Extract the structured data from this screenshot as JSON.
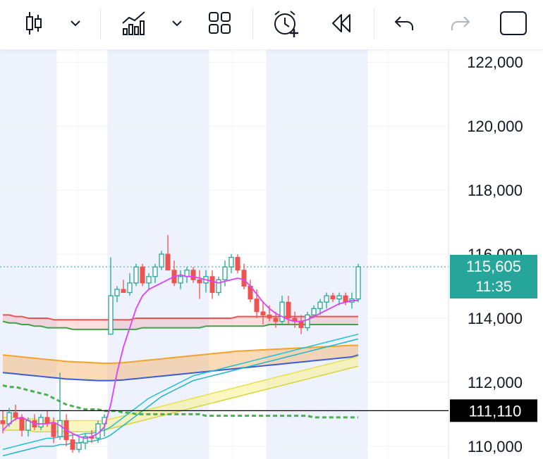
{
  "toolbar": {
    "buttons": [
      {
        "name": "candlestick-type-icon"
      },
      {
        "name": "chart-type-dropdown-icon"
      },
      {
        "name": "indicators-icon"
      },
      {
        "name": "indicators-dropdown-icon"
      },
      {
        "name": "layout-grid-icon"
      },
      {
        "name": "add-alert-icon"
      },
      {
        "name": "replay-icon"
      },
      {
        "name": "undo-icon"
      },
      {
        "name": "redo-icon"
      },
      {
        "name": "fullscreen-icon"
      }
    ],
    "icon_color": "#131722",
    "disabled_color": "#b2b5be"
  },
  "chart_data": {
    "type": "candlestick",
    "title": "",
    "xlabel": "",
    "ylabel": "",
    "ylim": [
      109600,
      122400
    ],
    "y_ticks": [
      "122,000",
      "120,000",
      "118,000",
      "116,000",
      "114,000",
      "112,000",
      "110,000"
    ],
    "y_tick_values": [
      122000,
      120000,
      118000,
      116000,
      114000,
      112000,
      110000
    ],
    "grid": true,
    "colors": {
      "up": "#26a69a",
      "down": "#ef5350",
      "session_band": "#edf2fd"
    },
    "last_price": {
      "value": 115605,
      "label": "115,605",
      "countdown": "11:35",
      "color": "#26a69a"
    },
    "horizontal_line": {
      "value": 111110,
      "label": "111,110",
      "color": "#000000"
    },
    "candles": [
      [
        110800,
        111100,
        110400,
        110700
      ],
      [
        110700,
        111200,
        110600,
        111050
      ],
      [
        111050,
        111300,
        110800,
        110900
      ],
      [
        110900,
        111000,
        110300,
        110500
      ],
      [
        110500,
        110900,
        110300,
        110800
      ],
      [
        110800,
        111000,
        110500,
        110600
      ],
      [
        110600,
        111000,
        110500,
        110900
      ],
      [
        110900,
        111100,
        110600,
        110700
      ],
      [
        110700,
        110900,
        110100,
        110300
      ],
      [
        110300,
        112300,
        110200,
        110800
      ],
      [
        110800,
        111000,
        110000,
        110200
      ],
      [
        110200,
        110400,
        109800,
        109900
      ],
      [
        109900,
        110300,
        109800,
        110100
      ],
      [
        110100,
        110400,
        109900,
        110300
      ],
      [
        110300,
        110500,
        110100,
        110250
      ],
      [
        110250,
        110800,
        110100,
        110700
      ],
      [
        110700,
        111000,
        110300,
        110900
      ],
      [
        113500,
        115900,
        113500,
        114700
      ],
      [
        114700,
        115000,
        114500,
        114900
      ],
      [
        114900,
        115200,
        114800,
        114800
      ],
      [
        114800,
        115400,
        114700,
        115100
      ],
      [
        115100,
        115700,
        115000,
        115600
      ],
      [
        115600,
        115700,
        115000,
        115100
      ],
      [
        115100,
        115400,
        114900,
        115300
      ],
      [
        115300,
        115700,
        115100,
        115600
      ],
      [
        115600,
        116100,
        115500,
        116000
      ],
      [
        116000,
        116600,
        115500,
        115500
      ],
      [
        115500,
        115800,
        115000,
        115100
      ],
      [
        115100,
        115500,
        114900,
        115300
      ],
      [
        115300,
        115600,
        115100,
        115500
      ],
      [
        115500,
        115600,
        115100,
        115200
      ],
      [
        115200,
        115500,
        114600,
        115100
      ],
      [
        115100,
        115500,
        114800,
        115300
      ],
      [
        115300,
        115500,
        114600,
        114800
      ],
      [
        114800,
        115300,
        114700,
        115200
      ],
      [
        115200,
        115800,
        115000,
        115600
      ],
      [
        115600,
        116000,
        115400,
        115900
      ],
      [
        115900,
        116000,
        115400,
        115500
      ],
      [
        115500,
        115700,
        114900,
        115000
      ],
      [
        115000,
        115200,
        114500,
        114600
      ],
      [
        114600,
        114900,
        114000,
        114200
      ],
      [
        114200,
        114500,
        113800,
        114100
      ],
      [
        114100,
        114400,
        113900,
        114000
      ],
      [
        114000,
        114200,
        113700,
        113900
      ],
      [
        113900,
        114700,
        113800,
        114500
      ],
      [
        114500,
        114700,
        113800,
        114000
      ],
      [
        114000,
        114200,
        113700,
        113900
      ],
      [
        113900,
        114100,
        113500,
        113700
      ],
      [
        113700,
        114200,
        113600,
        114100
      ],
      [
        114100,
        114400,
        114000,
        114300
      ],
      [
        114300,
        114600,
        114100,
        114500
      ],
      [
        114500,
        114800,
        114300,
        114700
      ],
      [
        114700,
        114800,
        114500,
        114600
      ],
      [
        114600,
        114800,
        114400,
        114700
      ],
      [
        114700,
        114800,
        114400,
        114500
      ],
      [
        114500,
        114800,
        114300,
        114600
      ],
      [
        114600,
        115700,
        114500,
        115605
      ]
    ],
    "ma_fast": [
      110500,
      110700,
      110850,
      110900,
      110800,
      110700,
      110700,
      110700,
      110750,
      110650,
      110500,
      110400,
      110300,
      110250,
      110300,
      110400,
      110600,
      111300,
      112300,
      113100,
      113700,
      114300,
      114700,
      114900,
      115000,
      115100,
      115200,
      115300,
      115350,
      115300,
      115300,
      115250,
      115200,
      115150,
      115100,
      115150,
      115200,
      115250,
      115200,
      115000,
      114750,
      114500,
      114300,
      114150,
      114050,
      113950,
      113900,
      113900,
      113950,
      114050,
      114150,
      114250,
      114350,
      114450,
      114500,
      114550,
      114550
    ],
    "ema_green": [
      111900,
      111850,
      111850,
      111800,
      111750,
      111700,
      111650,
      111600,
      111500,
      111400,
      111300,
      111250,
      111200,
      111150,
      111150,
      111150,
      111100,
      111100,
      111100,
      111050,
      111050,
      111000,
      111000,
      111000,
      111000,
      111000,
      111000,
      111000,
      111000,
      111000,
      111000,
      111000,
      110950,
      110950,
      110950,
      110950,
      110950,
      110950,
      110950,
      110950,
      110950,
      110950,
      110950,
      110950,
      110950,
      110950,
      110950,
      110950,
      110950,
      110900,
      110900,
      110900,
      110900,
      110900,
      110900,
      110900,
      110900
    ],
    "ribbon_red": [
      114100,
      114100,
      114050,
      114050,
      114000,
      114000,
      114000,
      114000,
      113950,
      113950,
      113950,
      113950,
      113950,
      113950,
      113950,
      113950,
      113950,
      113950,
      113950,
      113950,
      113950,
      114000,
      114000,
      114000,
      114000,
      114000,
      114000,
      114000,
      114000,
      114000,
      114000,
      114000,
      114000,
      114000,
      114000,
      114000,
      114000,
      114050,
      114050,
      114050,
      114050,
      114050,
      114050,
      114050,
      114050,
      114050,
      114050,
      114050,
      114050,
      114050,
      114050,
      114050,
      114050,
      114050,
      114050,
      114050,
      114050
    ],
    "ribbon_green": [
      113900,
      113850,
      113850,
      113800,
      113800,
      113750,
      113750,
      113700,
      113700,
      113700,
      113700,
      113650,
      113650,
      113650,
      113650,
      113650,
      113650,
      113650,
      113650,
      113650,
      113650,
      113650,
      113700,
      113700,
      113700,
      113700,
      113700,
      113700,
      113700,
      113700,
      113700,
      113700,
      113750,
      113750,
      113750,
      113750,
      113750,
      113750,
      113750,
      113750,
      113750,
      113750,
      113800,
      113800,
      113800,
      113800,
      113800,
      113800,
      113800,
      113800,
      113800,
      113800,
      113800,
      113800,
      113800,
      113800,
      113800
    ],
    "ribbon_orange": [
      112850,
      112830,
      112810,
      112790,
      112770,
      112750,
      112730,
      112710,
      112690,
      112670,
      112650,
      112640,
      112630,
      112620,
      112610,
      112600,
      112590,
      112590,
      112600,
      112610,
      112630,
      112650,
      112670,
      112690,
      112710,
      112730,
      112750,
      112770,
      112790,
      112810,
      112830,
      112850,
      112870,
      112890,
      112910,
      112930,
      112950,
      112970,
      112980,
      112990,
      113000,
      113010,
      113020,
      113030,
      113040,
      113050,
      113060,
      113070,
      113080,
      113090,
      113100,
      113110,
      113120,
      113130,
      113140,
      113150,
      113150
    ],
    "ribbon_blue": [
      112300,
      112280,
      112260,
      112240,
      112220,
      112200,
      112180,
      112160,
      112140,
      112120,
      112100,
      112090,
      112080,
      112070,
      112060,
      112050,
      112050,
      112050,
      112060,
      112070,
      112090,
      112110,
      112130,
      112150,
      112170,
      112190,
      112210,
      112230,
      112250,
      112270,
      112290,
      112310,
      112330,
      112350,
      112370,
      112390,
      112410,
      112430,
      112450,
      112470,
      112490,
      112510,
      112530,
      112550,
      112570,
      112590,
      112610,
      112630,
      112650,
      112670,
      112690,
      112710,
      112730,
      112750,
      112770,
      112790,
      112850
    ],
    "cyan_upper": [
      109900,
      109950,
      110000,
      110050,
      110100,
      110150,
      110200,
      110250,
      110250,
      110300,
      110300,
      110350,
      110350,
      110400,
      110400,
      110450,
      110500,
      110600,
      110750,
      110900,
      111050,
      111200,
      111350,
      111500,
      111600,
      111700,
      111800,
      111900,
      112000,
      112100,
      112200,
      112250,
      112300,
      112350,
      112400,
      112450,
      112500,
      112550,
      112600,
      112650,
      112700,
      112750,
      112800,
      112850,
      112900,
      112950,
      113000,
      113050,
      113100,
      113150,
      113200,
      113250,
      113300,
      113350,
      113400,
      113450,
      113500
    ],
    "cyan_lower": [
      109700,
      109750,
      109800,
      109850,
      109900,
      109950,
      110000,
      110000,
      110000,
      110050,
      110050,
      110100,
      110100,
      110150,
      110150,
      110200,
      110250,
      110350,
      110500,
      110650,
      110800,
      110950,
      111100,
      111250,
      111400,
      111550,
      111650,
      111750,
      111850,
      111950,
      112050,
      112100,
      112150,
      112200,
      112250,
      112300,
      112350,
      112400,
      112450,
      112500,
      112550,
      112600,
      112650,
      112700,
      112750,
      112800,
      112850,
      112900,
      112950,
      113000,
      113050,
      113100,
      113150,
      113200,
      113250,
      113300,
      113350
    ],
    "yellow_upper": [
      110900,
      110900,
      110900,
      110850,
      110850,
      110850,
      110800,
      110800,
      110800,
      110800,
      110800,
      110800,
      110800,
      110800,
      110800,
      110800,
      110800,
      110850,
      110900,
      110950,
      111000,
      111050,
      111100,
      111150,
      111200,
      111250,
      111300,
      111350,
      111400,
      111450,
      111500,
      111550,
      111600,
      111650,
      111700,
      111750,
      111800,
      111850,
      111900,
      111950,
      112000,
      112050,
      112100,
      112150,
      112200,
      112250,
      112300,
      112350,
      112400,
      112450,
      112500,
      112550,
      112600,
      112650,
      112700,
      112750,
      112800
    ],
    "yellow_lower": [
      110500,
      110500,
      110500,
      110500,
      110500,
      110450,
      110450,
      110450,
      110450,
      110450,
      110450,
      110450,
      110450,
      110450,
      110450,
      110500,
      110500,
      110550,
      110600,
      110650,
      110700,
      110750,
      110800,
      110850,
      110900,
      110950,
      111000,
      111050,
      111100,
      111150,
      111200,
      111250,
      111300,
      111350,
      111400,
      111450,
      111500,
      111550,
      111600,
      111650,
      111700,
      111750,
      111800,
      111850,
      111900,
      111950,
      112000,
      112050,
      112100,
      112150,
      112200,
      112250,
      112300,
      112350,
      112400,
      112450,
      112500
    ]
  }
}
